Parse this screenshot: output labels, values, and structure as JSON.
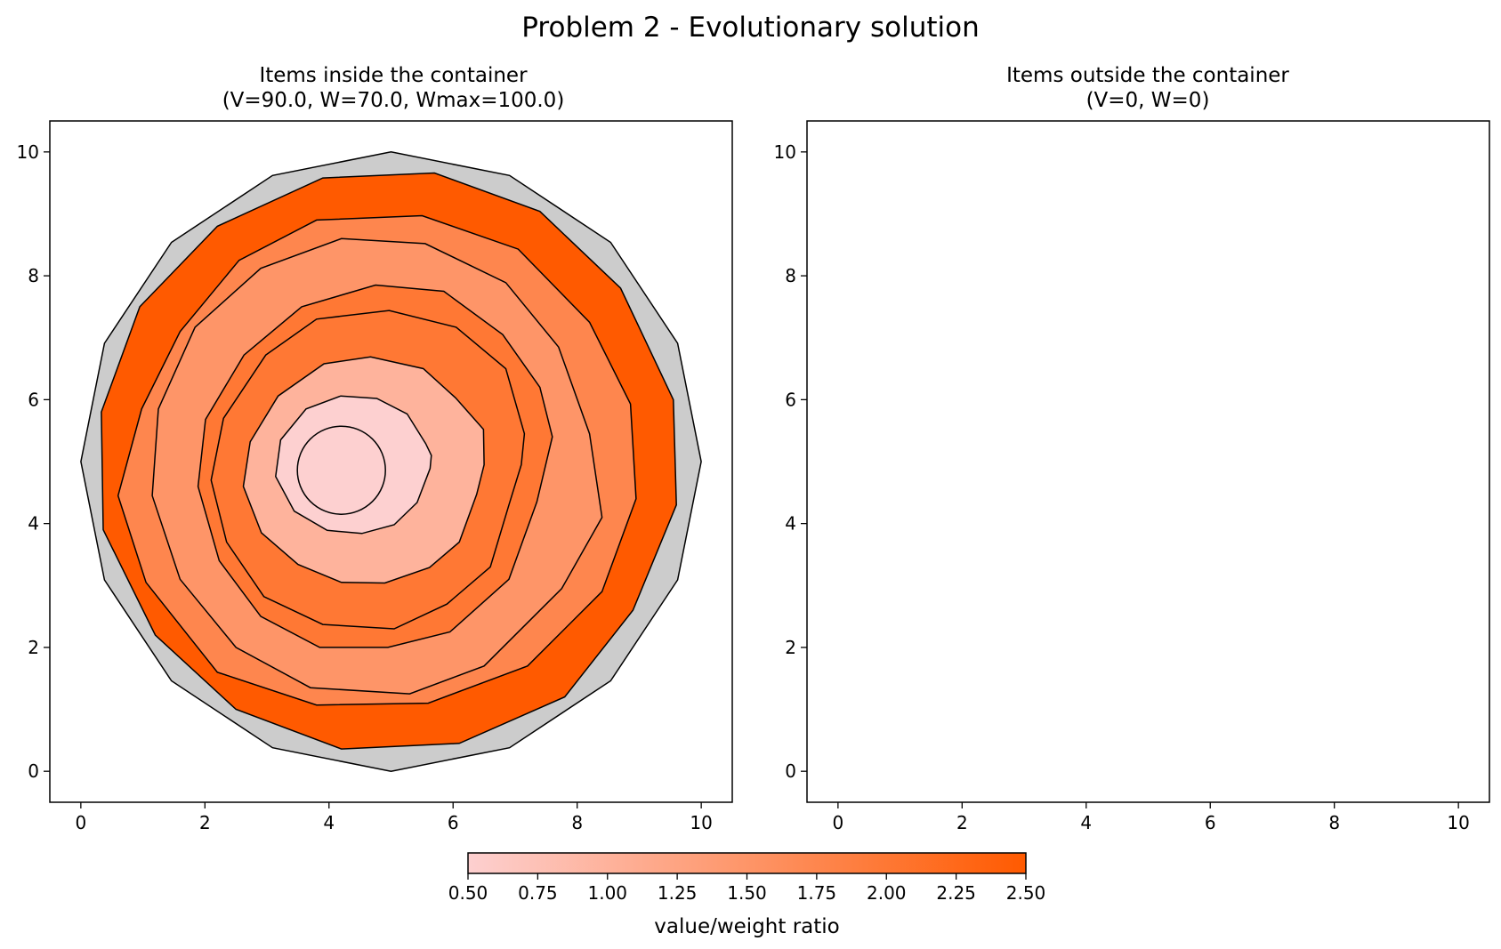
{
  "figure_title": "Problem 2 - Evolutionary solution",
  "colors": {
    "container_fill": "#cccccc",
    "edge": "#000000",
    "colormap_low": "#fdd0d0",
    "colormap_high": "#ff5a00"
  },
  "colorbar": {
    "label": "value/weight ratio",
    "range": [
      0.5,
      2.5
    ],
    "tick_labels": [
      "0.50",
      "0.75",
      "1.00",
      "1.25",
      "1.50",
      "1.75",
      "2.00",
      "2.25",
      "2.50"
    ]
  },
  "chart_data": [
    {
      "type": "polygon-packing",
      "title_line1": "Items inside the container",
      "title_line2": "(V=90.0, W=70.0, Wmax=100.0)",
      "xlim": [
        -0.5,
        10.5
      ],
      "ylim": [
        -0.5,
        10.5
      ],
      "x_ticks": [
        0,
        2,
        4,
        6,
        8,
        10
      ],
      "y_ticks": [
        0,
        2,
        4,
        6,
        8,
        10
      ],
      "container": {
        "points": [
          [
            10,
            5
          ],
          [
            9.62,
            3.09
          ],
          [
            8.54,
            1.46
          ],
          [
            6.91,
            0.38
          ],
          [
            5,
            0
          ],
          [
            3.09,
            0.38
          ],
          [
            1.46,
            1.46
          ],
          [
            0.38,
            3.09
          ],
          [
            0,
            5
          ],
          [
            0.38,
            6.91
          ],
          [
            1.46,
            8.54
          ],
          [
            3.09,
            9.62
          ],
          [
            5,
            10
          ],
          [
            6.91,
            9.62
          ],
          [
            8.54,
            8.54
          ],
          [
            9.62,
            6.91
          ]
        ]
      },
      "items": [
        {
          "ratio": 2.5,
          "points": [
            [
              9.6,
              4.3
            ],
            [
              8.9,
              2.6
            ],
            [
              7.8,
              1.2
            ],
            [
              6.1,
              0.45
            ],
            [
              4.2,
              0.36
            ],
            [
              2.5,
              1.0
            ],
            [
              1.2,
              2.2
            ],
            [
              0.36,
              3.9
            ],
            [
              0.33,
              5.8
            ],
            [
              0.95,
              7.5
            ],
            [
              2.2,
              8.8
            ],
            [
              3.9,
              9.58
            ],
            [
              5.7,
              9.66
            ],
            [
              7.4,
              9.04
            ],
            [
              8.7,
              7.8
            ],
            [
              9.55,
              6.0
            ]
          ]
        },
        {
          "ratio": 1.75,
          "points": [
            [
              8.95,
              4.4
            ],
            [
              8.4,
              2.9
            ],
            [
              7.2,
              1.7
            ],
            [
              5.6,
              1.1
            ],
            [
              3.8,
              1.07
            ],
            [
              2.2,
              1.6
            ],
            [
              1.05,
              3.05
            ],
            [
              0.6,
              4.45
            ],
            [
              0.98,
              5.85
            ],
            [
              1.6,
              7.1
            ],
            [
              2.55,
              8.25
            ],
            [
              3.8,
              8.9
            ],
            [
              5.5,
              8.97
            ],
            [
              7.05,
              8.43
            ],
            [
              8.2,
              7.25
            ],
            [
              8.86,
              5.93
            ]
          ]
        },
        {
          "ratio": 1.5,
          "points": [
            [
              8.4,
              4.1
            ],
            [
              7.75,
              2.95
            ],
            [
              6.5,
              1.7
            ],
            [
              5.3,
              1.25
            ],
            [
              3.7,
              1.35
            ],
            [
              2.5,
              2.0
            ],
            [
              1.6,
              3.1
            ],
            [
              1.15,
              4.45
            ],
            [
              1.25,
              5.85
            ],
            [
              1.84,
              7.17
            ],
            [
              2.9,
              8.12
            ],
            [
              4.2,
              8.6
            ],
            [
              5.55,
              8.52
            ],
            [
              6.85,
              7.89
            ],
            [
              7.7,
              6.85
            ],
            [
              8.2,
              5.45
            ]
          ]
        },
        {
          "ratio": 2.0,
          "points": [
            [
              7.35,
              4.35
            ],
            [
              6.9,
              3.1
            ],
            [
              5.95,
              2.25
            ],
            [
              4.95,
              2.0
            ],
            [
              3.85,
              2.0
            ],
            [
              2.9,
              2.5
            ],
            [
              2.23,
              3.4
            ],
            [
              1.89,
              4.6
            ],
            [
              2.01,
              5.68
            ],
            [
              2.63,
              6.72
            ],
            [
              3.56,
              7.5
            ],
            [
              4.75,
              7.85
            ],
            [
              5.85,
              7.75
            ],
            [
              6.8,
              7.05
            ],
            [
              7.4,
              6.2
            ],
            [
              7.6,
              5.4
            ]
          ]
        },
        {
          "ratio": 2.0,
          "points": [
            [
              6.9,
              4.3
            ],
            [
              6.6,
              3.3
            ],
            [
              5.9,
              2.7
            ],
            [
              5.05,
              2.3
            ],
            [
              3.9,
              2.37
            ],
            [
              2.95,
              2.82
            ],
            [
              2.35,
              3.7
            ],
            [
              2.1,
              4.7
            ],
            [
              2.3,
              5.7
            ],
            [
              2.98,
              6.72
            ],
            [
              3.8,
              7.3
            ],
            [
              4.97,
              7.44
            ],
            [
              6.05,
              7.17
            ],
            [
              6.85,
              6.5
            ],
            [
              7.15,
              5.45
            ],
            [
              7.1,
              4.95
            ]
          ]
        },
        {
          "ratio": 1.0,
          "points": [
            [
              6.38,
              4.47
            ],
            [
              6.1,
              3.7
            ],
            [
              5.62,
              3.29
            ],
            [
              4.9,
              3.04
            ],
            [
              4.2,
              3.05
            ],
            [
              3.5,
              3.34
            ],
            [
              2.91,
              3.85
            ],
            [
              2.62,
              4.6
            ],
            [
              2.73,
              5.32
            ],
            [
              3.18,
              6.06
            ],
            [
              3.92,
              6.58
            ],
            [
              4.67,
              6.69
            ],
            [
              5.52,
              6.5
            ],
            [
              6.04,
              6.03
            ],
            [
              6.49,
              5.52
            ],
            [
              6.5,
              4.95
            ]
          ]
        },
        {
          "ratio": 0.5,
          "points": [
            [
              5.63,
              4.89
            ],
            [
              5.42,
              4.34
            ],
            [
              5.05,
              3.98
            ],
            [
              4.53,
              3.84
            ],
            [
              3.97,
              3.89
            ],
            [
              3.44,
              4.2
            ],
            [
              3.14,
              4.76
            ],
            [
              3.22,
              5.35
            ],
            [
              3.63,
              5.85
            ],
            [
              4.19,
              6.06
            ],
            [
              4.77,
              6.02
            ],
            [
              5.26,
              5.77
            ],
            [
              5.56,
              5.29
            ],
            [
              5.65,
              5.1
            ],
            [
              5.63,
              4.89
            ]
          ]
        }
      ],
      "circle": {
        "ratio": 0.5,
        "cx": 4.2,
        "cy": 4.86,
        "r": 0.71
      }
    },
    {
      "type": "polygon-packing",
      "title_line1": "Items outside the container",
      "title_line2": "(V=0, W=0)",
      "xlim": [
        -0.5,
        10.5
      ],
      "ylim": [
        -0.5,
        10.5
      ],
      "x_ticks": [
        0,
        2,
        4,
        6,
        8,
        10
      ],
      "y_ticks": [
        0,
        2,
        4,
        6,
        8,
        10
      ],
      "items": []
    }
  ]
}
